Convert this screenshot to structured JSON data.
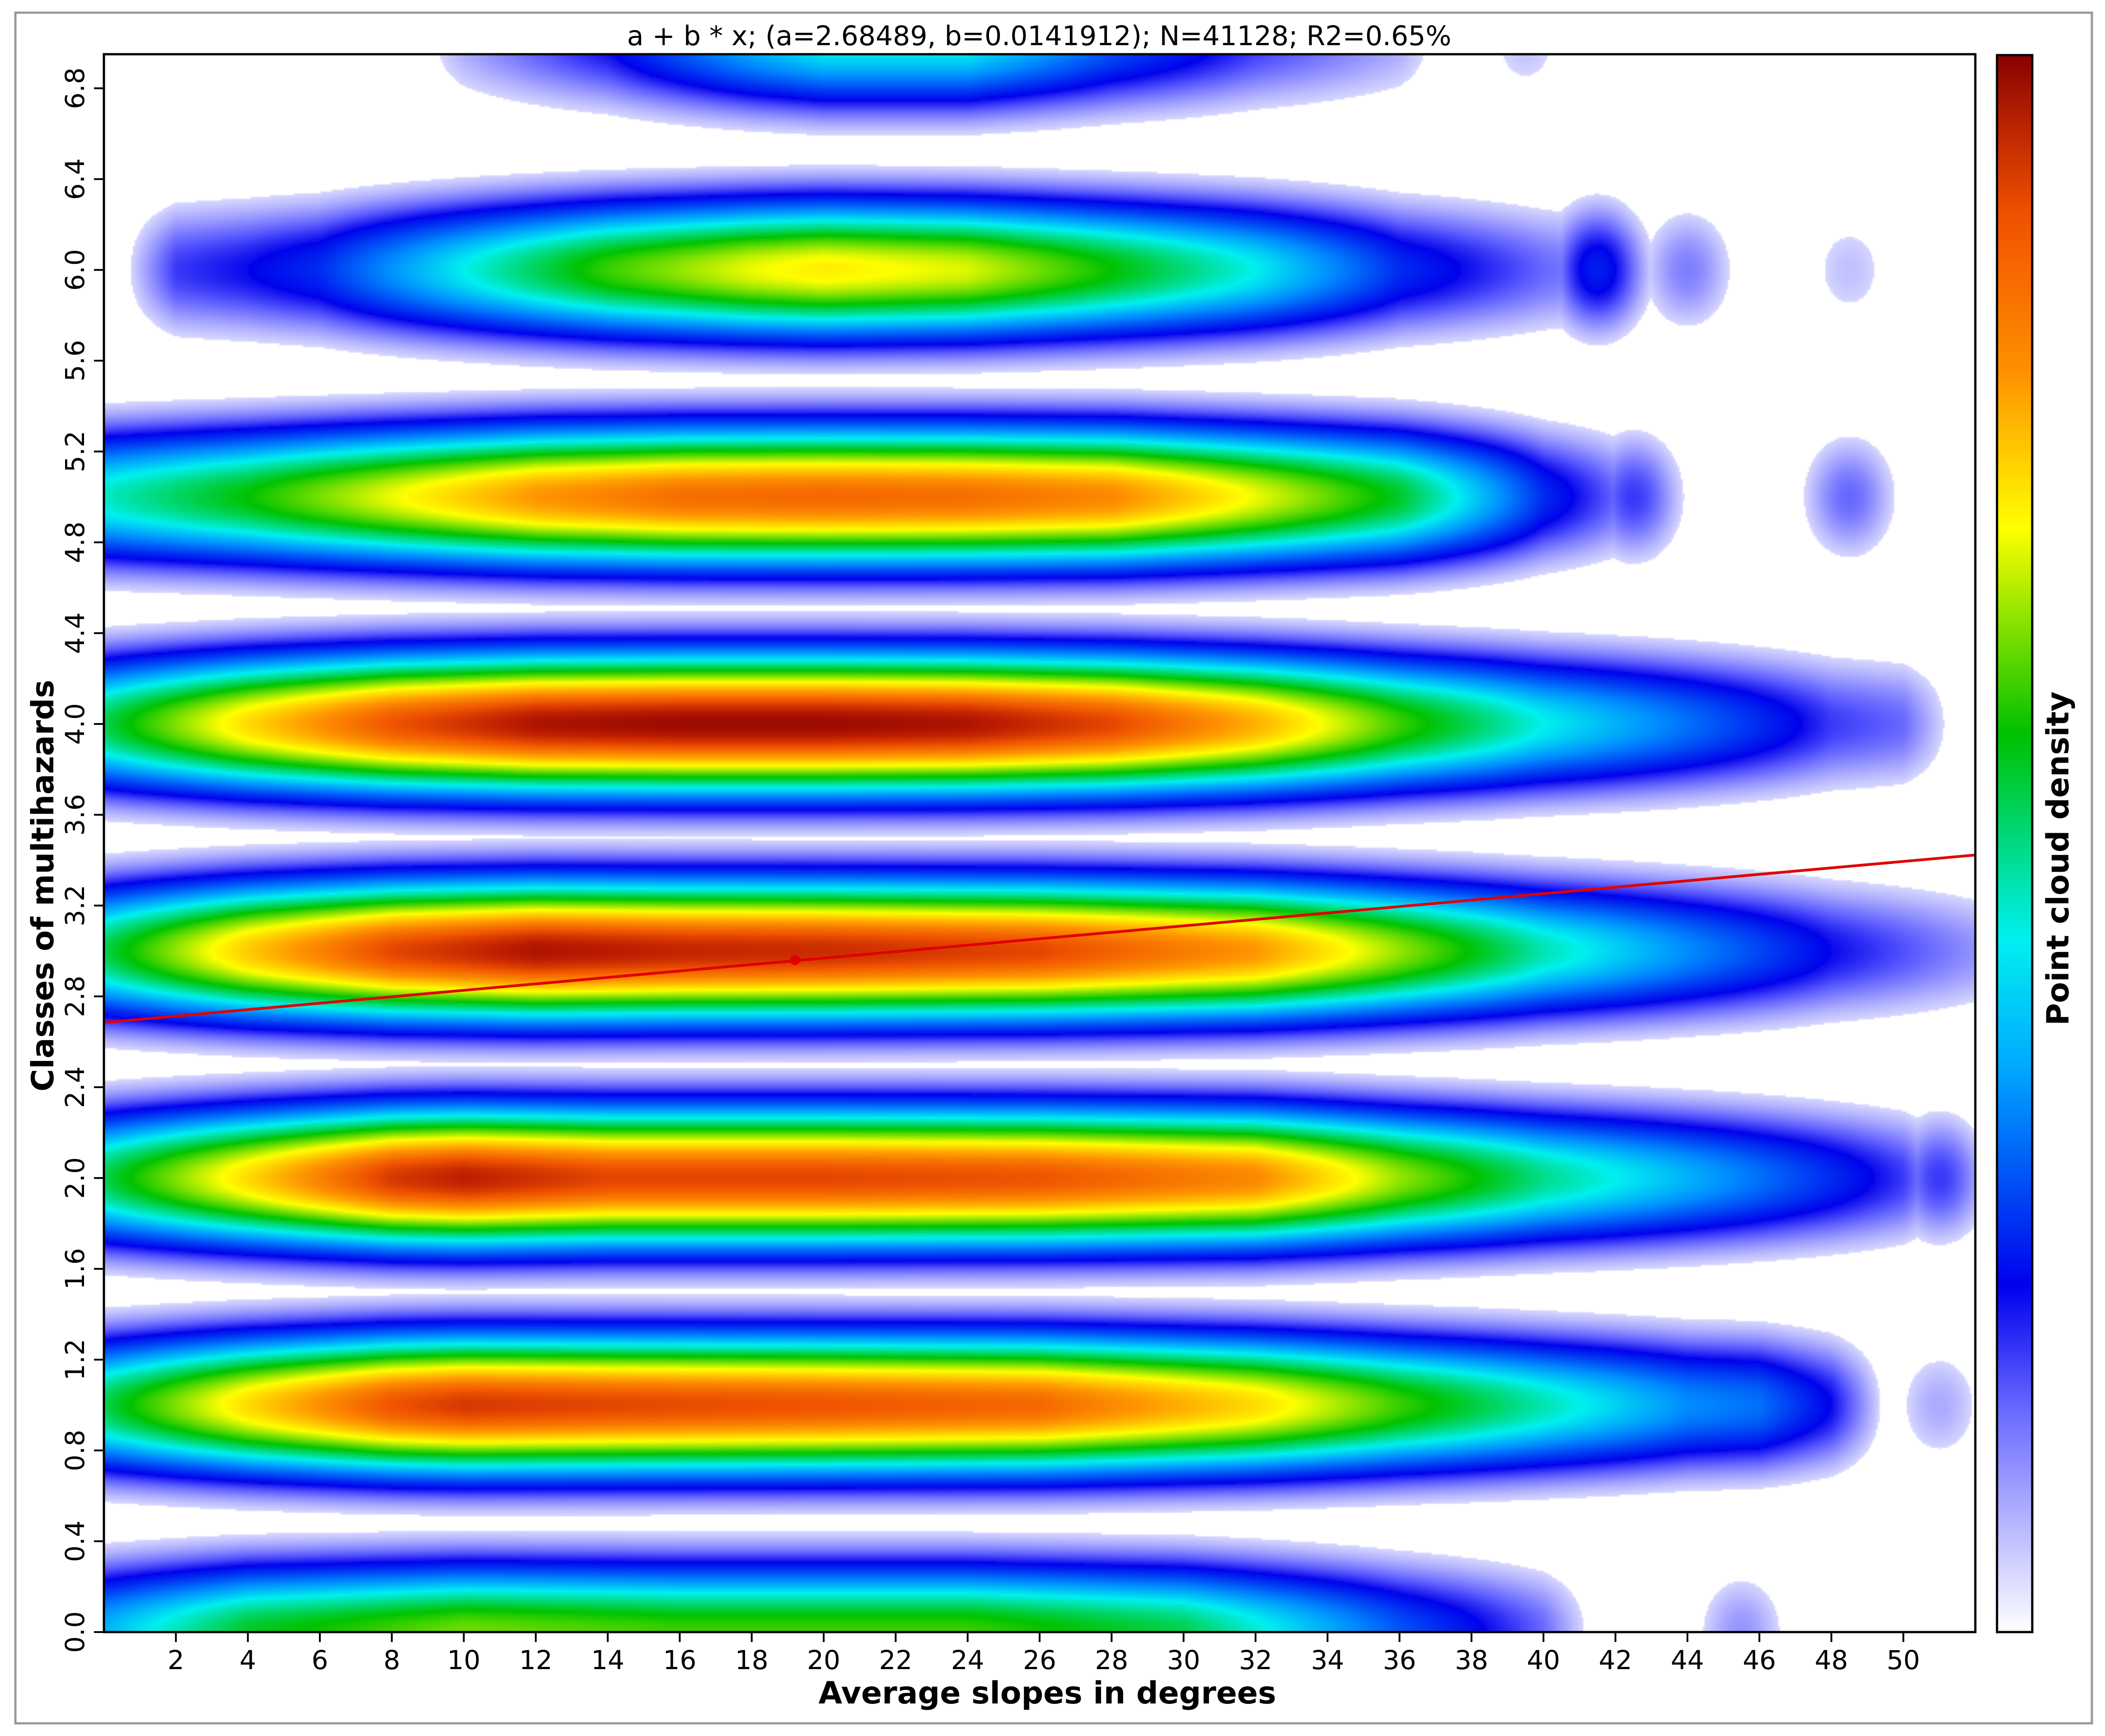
{
  "chart_data": {
    "type": "heatmap",
    "subtype": "point-cloud-density-with-regression-line",
    "title": "a + b * x; (a=2.68489, b=0.0141912); N=41128; R2=0.65%",
    "xlabel": "Average slopes in degrees",
    "ylabel": "Classes of multihazards",
    "colorbar_label": "Point cloud density",
    "xlim": [
      0,
      52
    ],
    "ylim": [
      0,
      6.95
    ],
    "x_ticks": [
      2,
      4,
      6,
      8,
      10,
      12,
      14,
      16,
      18,
      20,
      22,
      24,
      26,
      28,
      30,
      32,
      34,
      36,
      38,
      40,
      42,
      44,
      46,
      48,
      50
    ],
    "x_tick_labels": [
      "2",
      "4",
      "6",
      "8",
      "10",
      "12",
      "14",
      "16",
      "18",
      "20",
      "22",
      "24",
      "26",
      "28",
      "30",
      "32",
      "34",
      "36",
      "38",
      "40",
      "42",
      "44",
      "46",
      "48",
      "50"
    ],
    "y_ticks": [
      0,
      0.4,
      0.8,
      1.2,
      1.6,
      2.0,
      2.4,
      2.8,
      3.2,
      3.6,
      4.0,
      4.4,
      4.8,
      5.2,
      5.6,
      6.0,
      6.4,
      6.8
    ],
    "y_tick_labels": [
      "0.0",
      "0.4",
      "0.8",
      "1.2",
      "1.6",
      "2.0",
      "2.4",
      "2.8",
      "3.2",
      "3.6",
      "4.0",
      "4.4",
      "4.8",
      "5.2",
      "5.6",
      "6.0",
      "6.4",
      "6.8"
    ],
    "regression": {
      "a": 2.68489,
      "b": 0.0141912,
      "N": 41128,
      "R2_percent": 0.65,
      "line_color": "#e00000",
      "centroid": [
        19.2,
        2.96
      ]
    },
    "grid": false,
    "legend_position": "right (vertical colorbar)",
    "colormap": [
      "#ffffff",
      "#0000ee",
      "#00aaff",
      "#00f0f0",
      "#00c000",
      "#ffff00",
      "#ff9000",
      "#f05000",
      "#8b0000"
    ],
    "density_bands": [
      {
        "y_class": 0,
        "x_range": [
          0,
          40
        ],
        "peak": 0.45,
        "profile": [
          [
            0,
            0.25
          ],
          [
            4,
            0.4
          ],
          [
            10,
            0.48
          ],
          [
            16,
            0.45
          ],
          [
            24,
            0.45
          ],
          [
            30,
            0.38
          ],
          [
            36,
            0.18
          ],
          [
            40,
            0.08
          ]
        ],
        "extra_blobs": [
          [
            45.5,
            0.06
          ]
        ]
      },
      {
        "y_class": 1,
        "x_range": [
          0,
          48
        ],
        "peak": 0.85,
        "profile": [
          [
            0,
            0.38
          ],
          [
            4,
            0.6
          ],
          [
            8,
            0.78
          ],
          [
            10,
            0.82
          ],
          [
            14,
            0.8
          ],
          [
            20,
            0.78
          ],
          [
            26,
            0.75
          ],
          [
            32,
            0.6
          ],
          [
            36,
            0.45
          ],
          [
            40,
            0.33
          ],
          [
            44,
            0.22
          ],
          [
            46,
            0.2
          ],
          [
            48,
            0.12
          ]
        ],
        "extra_blobs": [
          [
            51,
            0.05
          ]
        ]
      },
      {
        "y_class": 2,
        "x_range": [
          0,
          50
        ],
        "peak": 0.88,
        "profile": [
          [
            0,
            0.38
          ],
          [
            4,
            0.6
          ],
          [
            8,
            0.82
          ],
          [
            10,
            0.86
          ],
          [
            14,
            0.8
          ],
          [
            20,
            0.8
          ],
          [
            26,
            0.78
          ],
          [
            32,
            0.7
          ],
          [
            36,
            0.5
          ],
          [
            40,
            0.35
          ],
          [
            44,
            0.25
          ],
          [
            46,
            0.2
          ],
          [
            48,
            0.15
          ],
          [
            50,
            0.1
          ]
        ],
        "extra_blobs": [
          [
            51,
            0.1
          ]
        ]
      },
      {
        "y_class": 3,
        "x_range": [
          0,
          52
        ],
        "peak": 0.9,
        "profile": [
          [
            0,
            0.38
          ],
          [
            4,
            0.62
          ],
          [
            8,
            0.8
          ],
          [
            12,
            0.88
          ],
          [
            16,
            0.85
          ],
          [
            20,
            0.84
          ],
          [
            26,
            0.8
          ],
          [
            32,
            0.68
          ],
          [
            36,
            0.5
          ],
          [
            40,
            0.33
          ],
          [
            44,
            0.22
          ],
          [
            48,
            0.12
          ],
          [
            52,
            0.06
          ]
        ],
        "extra_blobs": []
      },
      {
        "y_class": 4,
        "x_range": [
          0,
          50
        ],
        "peak": 0.92,
        "profile": [
          [
            0,
            0.38
          ],
          [
            4,
            0.6
          ],
          [
            8,
            0.78
          ],
          [
            12,
            0.88
          ],
          [
            16,
            0.9
          ],
          [
            20,
            0.9
          ],
          [
            24,
            0.88
          ],
          [
            28,
            0.8
          ],
          [
            32,
            0.65
          ],
          [
            36,
            0.45
          ],
          [
            40,
            0.3
          ],
          [
            44,
            0.2
          ],
          [
            48,
            0.1
          ],
          [
            50,
            0.08
          ]
        ],
        "extra_blobs": []
      },
      {
        "y_class": 5,
        "x_range": [
          0,
          42
        ],
        "peak": 0.76,
        "profile": [
          [
            0,
            0.32
          ],
          [
            4,
            0.42
          ],
          [
            8,
            0.55
          ],
          [
            12,
            0.68
          ],
          [
            16,
            0.74
          ],
          [
            20,
            0.75
          ],
          [
            24,
            0.74
          ],
          [
            28,
            0.7
          ],
          [
            32,
            0.55
          ],
          [
            36,
            0.4
          ],
          [
            40,
            0.15
          ],
          [
            42,
            0.08
          ]
        ],
        "extra_blobs": [
          [
            42.5,
            0.1
          ],
          [
            48.5,
            0.08
          ]
        ]
      },
      {
        "y_class": 6,
        "x_range": [
          2,
          42
        ],
        "peak": 0.58,
        "profile": [
          [
            2,
            0.1
          ],
          [
            4,
            0.12
          ],
          [
            6,
            0.15
          ],
          [
            10,
            0.3
          ],
          [
            14,
            0.45
          ],
          [
            18,
            0.55
          ],
          [
            20,
            0.58
          ],
          [
            24,
            0.54
          ],
          [
            28,
            0.42
          ],
          [
            32,
            0.3
          ],
          [
            36,
            0.15
          ],
          [
            40,
            0.08
          ],
          [
            42,
            0.06
          ]
        ],
        "extra_blobs": [
          [
            41.5,
            0.14
          ],
          [
            44,
            0.07
          ],
          [
            48.5,
            0.04
          ]
        ]
      },
      {
        "y_class": 7,
        "x_range": [
          10,
          36
        ],
        "peak": 0.3,
        "profile": [
          [
            10,
            0.05
          ],
          [
            14,
            0.12
          ],
          [
            18,
            0.25
          ],
          [
            20,
            0.3
          ],
          [
            24,
            0.3
          ],
          [
            28,
            0.18
          ],
          [
            32,
            0.1
          ],
          [
            36,
            0.05
          ]
        ],
        "extra_blobs": [
          [
            39.5,
            0.04
          ]
        ]
      }
    ]
  }
}
